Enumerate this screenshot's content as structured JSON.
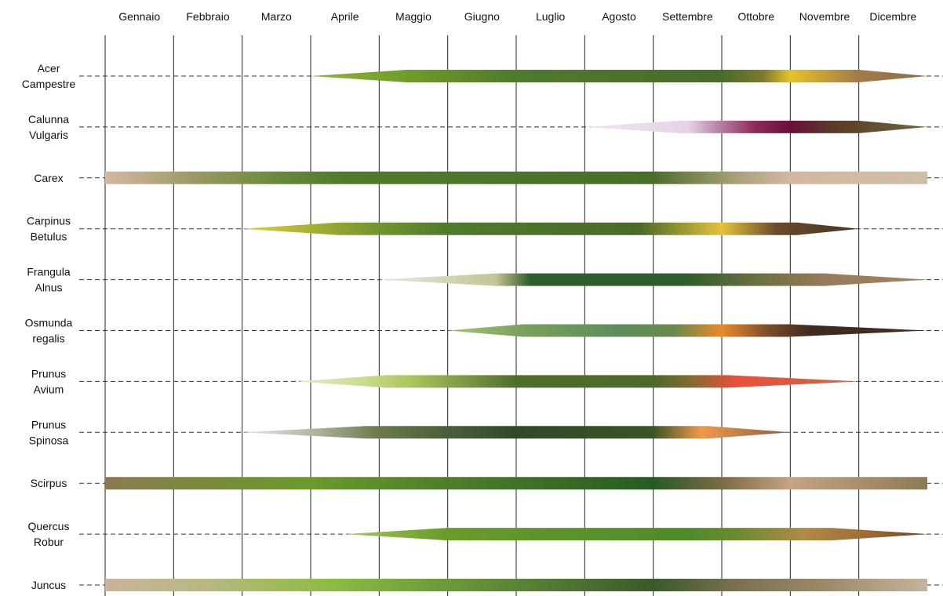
{
  "chart_data": {
    "type": "timeline",
    "title": "",
    "x_unit": "month",
    "xlim": [
      0,
      12
    ],
    "months": [
      "Gennaio",
      "Febbraio",
      "Marzo",
      "Aprile",
      "Maggio",
      "Giugno",
      "Luglio",
      "Agosto",
      "Settembre",
      "Ottobre",
      "Novembre",
      "Dicembre"
    ],
    "grid": "vertical lines at month boundaries",
    "series": [
      {
        "name": "Acer Campestre",
        "label_lines": [
          "Acer",
          "Campestre"
        ],
        "start": 3.0,
        "end": 12.0,
        "start_shape": "taper",
        "end_shape": "point",
        "taper_in_end": 4.4,
        "taper_out_start": 11.0,
        "stops": [
          {
            "pos": 3.0,
            "color": "#8db33a"
          },
          {
            "pos": 4.5,
            "color": "#6f9a2a"
          },
          {
            "pos": 6.0,
            "color": "#4f7a2c"
          },
          {
            "pos": 9.0,
            "color": "#4a6b2a"
          },
          {
            "pos": 9.6,
            "color": "#7a7a2e"
          },
          {
            "pos": 10.0,
            "color": "#e5c22a"
          },
          {
            "pos": 11.0,
            "color": "#a37a48"
          },
          {
            "pos": 12.0,
            "color": "#8a6e4a"
          }
        ]
      },
      {
        "name": "Calunna Vulgaris",
        "label_lines": [
          "Calunna",
          "Vulgaris"
        ],
        "start": 7.0,
        "end": 12.0,
        "start_shape": "taper",
        "end_shape": "point",
        "taper_in_end": 8.4,
        "taper_out_start": 11.0,
        "stops": [
          {
            "pos": 7.0,
            "color": "#f1e6f0"
          },
          {
            "pos": 8.5,
            "color": "#e6d2e8"
          },
          {
            "pos": 9.0,
            "color": "#b57aa0"
          },
          {
            "pos": 9.5,
            "color": "#8c2a5a"
          },
          {
            "pos": 10.0,
            "color": "#6b0f3c"
          },
          {
            "pos": 10.6,
            "color": "#5a3a28"
          },
          {
            "pos": 12.0,
            "color": "#6e6a3a"
          }
        ]
      },
      {
        "name": "Carex",
        "label_lines": [
          "Carex"
        ],
        "start": 0.0,
        "end": 12.0,
        "start_shape": "flat",
        "end_shape": "flat",
        "stops": [
          {
            "pos": 0.0,
            "color": "#d4b8a0"
          },
          {
            "pos": 1.3,
            "color": "#9a9a64"
          },
          {
            "pos": 2.5,
            "color": "#6a8a3a"
          },
          {
            "pos": 3.5,
            "color": "#4f7a2c"
          },
          {
            "pos": 8.0,
            "color": "#4a6e2a"
          },
          {
            "pos": 9.2,
            "color": "#a8a078"
          },
          {
            "pos": 10.0,
            "color": "#d2b8a0"
          },
          {
            "pos": 12.0,
            "color": "#cebea6"
          }
        ]
      },
      {
        "name": "Carpinus Betulus",
        "label_lines": [
          "Carpinus",
          "Betulus"
        ],
        "start": 2.0,
        "end": 11.0,
        "start_shape": "taper",
        "end_shape": "point",
        "taper_in_end": 3.4,
        "taper_out_start": 10.1,
        "stops": [
          {
            "pos": 2.0,
            "color": "#e0d040"
          },
          {
            "pos": 3.0,
            "color": "#a8b030"
          },
          {
            "pos": 3.8,
            "color": "#7a9a30"
          },
          {
            "pos": 5.0,
            "color": "#4f7a2c"
          },
          {
            "pos": 7.8,
            "color": "#4a6a2a"
          },
          {
            "pos": 9.0,
            "color": "#e3c23a"
          },
          {
            "pos": 9.8,
            "color": "#6a4a2a"
          },
          {
            "pos": 11.0,
            "color": "#4a3422"
          }
        ]
      },
      {
        "name": "Frangula Alnus",
        "label_lines": [
          "Frangula",
          "Alnus"
        ],
        "start": 4.0,
        "end": 12.0,
        "start_shape": "taper",
        "end_shape": "point",
        "taper_in_end": 5.7,
        "taper_out_start": 10.5,
        "stops": [
          {
            "pos": 4.0,
            "color": "#e6e6e6"
          },
          {
            "pos": 5.0,
            "color": "#d4d4b4"
          },
          {
            "pos": 5.7,
            "color": "#c4c494"
          },
          {
            "pos": 6.2,
            "color": "#2f5e2a"
          },
          {
            "pos": 8.5,
            "color": "#2f5e2a"
          },
          {
            "pos": 9.5,
            "color": "#6a7040"
          },
          {
            "pos": 10.5,
            "color": "#9a7a5a"
          },
          {
            "pos": 12.0,
            "color": "#a08462"
          }
        ]
      },
      {
        "name": "Osmunda regalis",
        "label_lines": [
          "Osmunda",
          "regalis"
        ],
        "start": 5.0,
        "end": 12.0,
        "start_shape": "taper",
        "end_shape": "point",
        "taper_in_end": 6.1,
        "taper_out_start": 10.0,
        "stops": [
          {
            "pos": 5.0,
            "color": "#a4c47a"
          },
          {
            "pos": 6.1,
            "color": "#7aa05a"
          },
          {
            "pos": 7.5,
            "color": "#5e8c5e"
          },
          {
            "pos": 8.3,
            "color": "#6a8a4a"
          },
          {
            "pos": 9.0,
            "color": "#e88a2a"
          },
          {
            "pos": 9.7,
            "color": "#7a4a2a"
          },
          {
            "pos": 10.3,
            "color": "#3e2a22"
          },
          {
            "pos": 12.0,
            "color": "#4a2a22"
          }
        ]
      },
      {
        "name": "Prunus Avium",
        "label_lines": [
          "Prunus",
          "Avium"
        ],
        "start": 2.8,
        "end": 11.0,
        "start_shape": "taper",
        "end_shape": "point",
        "taper_in_end": 4.1,
        "taper_out_start": 9.1,
        "stops": [
          {
            "pos": 2.8,
            "color": "#e6ead0"
          },
          {
            "pos": 3.8,
            "color": "#c8dc8a"
          },
          {
            "pos": 4.5,
            "color": "#a8c45a"
          },
          {
            "pos": 6.0,
            "color": "#4f6e2a"
          },
          {
            "pos": 8.0,
            "color": "#4a6a2a"
          },
          {
            "pos": 8.6,
            "color": "#8a6a32"
          },
          {
            "pos": 9.2,
            "color": "#e8503a"
          },
          {
            "pos": 11.0,
            "color": "#c86a48"
          }
        ]
      },
      {
        "name": "Prunus Spinosa",
        "label_lines": [
          "Prunus",
          "Spinosa"
        ],
        "start": 2.0,
        "end": 10.0,
        "start_shape": "taper",
        "end_shape": "point",
        "taper_in_end": 3.8,
        "taper_out_start": 8.8,
        "stops": [
          {
            "pos": 2.0,
            "color": "#e6e6ea"
          },
          {
            "pos": 3.0,
            "color": "#b4b8a4"
          },
          {
            "pos": 4.0,
            "color": "#6a7a4a"
          },
          {
            "pos": 5.0,
            "color": "#4a5e3a"
          },
          {
            "pos": 6.0,
            "color": "#2f4a26"
          },
          {
            "pos": 8.0,
            "color": "#3a5428"
          },
          {
            "pos": 8.7,
            "color": "#f09a4a"
          },
          {
            "pos": 10.0,
            "color": "#8a5a48"
          }
        ]
      },
      {
        "name": "Scirpus",
        "label_lines": [
          "Scirpus"
        ],
        "start": 0.0,
        "end": 12.0,
        "start_shape": "flat",
        "end_shape": "flat",
        "stops": [
          {
            "pos": 0.0,
            "color": "#8a7a52"
          },
          {
            "pos": 1.5,
            "color": "#7a8a3a"
          },
          {
            "pos": 3.0,
            "color": "#6a9a2a"
          },
          {
            "pos": 5.0,
            "color": "#4f7e2a"
          },
          {
            "pos": 8.0,
            "color": "#285a24"
          },
          {
            "pos": 9.0,
            "color": "#7a6a48"
          },
          {
            "pos": 10.0,
            "color": "#c4a484"
          },
          {
            "pos": 12.0,
            "color": "#8c7a58"
          }
        ]
      },
      {
        "name": "Quercus Robur",
        "label_lines": [
          "Quercus",
          "Robur"
        ],
        "start": 3.5,
        "end": 12.0,
        "start_shape": "taper",
        "end_shape": "point",
        "taper_in_end": 5.0,
        "taper_out_start": 10.6,
        "stops": [
          {
            "pos": 3.5,
            "color": "#a8c460"
          },
          {
            "pos": 5.0,
            "color": "#6a9a2a"
          },
          {
            "pos": 8.5,
            "color": "#4f8a2a"
          },
          {
            "pos": 9.2,
            "color": "#6a8a32"
          },
          {
            "pos": 10.2,
            "color": "#b08a48"
          },
          {
            "pos": 11.2,
            "color": "#9a6a32"
          },
          {
            "pos": 12.0,
            "color": "#6a3e22"
          }
        ]
      },
      {
        "name": "Juncus",
        "label_lines": [
          "Juncus"
        ],
        "start": 0.0,
        "end": 12.0,
        "start_shape": "flat",
        "end_shape": "flat",
        "stops": [
          {
            "pos": 0.0,
            "color": "#c8b49a"
          },
          {
            "pos": 1.5,
            "color": "#b8b880"
          },
          {
            "pos": 3.3,
            "color": "#8cbc40"
          },
          {
            "pos": 5.0,
            "color": "#6a9a3a"
          },
          {
            "pos": 8.0,
            "color": "#3a5a2a"
          },
          {
            "pos": 9.2,
            "color": "#7a7050"
          },
          {
            "pos": 10.5,
            "color": "#9a8a6a"
          },
          {
            "pos": 12.0,
            "color": "#c4b49c"
          }
        ]
      }
    ]
  }
}
